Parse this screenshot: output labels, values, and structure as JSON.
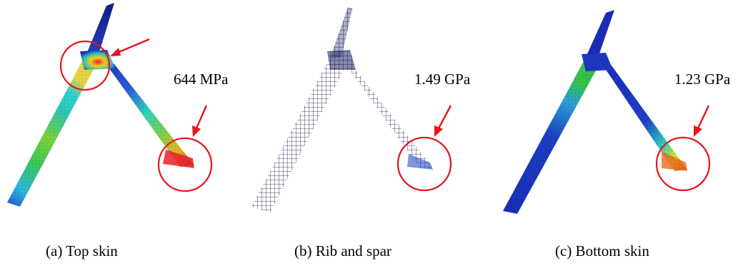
{
  "panels": [
    {
      "id": "a",
      "caption": "(a) Top skin",
      "stress_label": "644 MPa",
      "colormap": "stress-contour-rainbow"
    },
    {
      "id": "b",
      "caption": "(b) Rib and spar",
      "stress_label": "1.49 GPa",
      "colormap": "wireframe-mesh"
    },
    {
      "id": "c",
      "caption": "(c) Bottom skin",
      "stress_label": "1.23 GPa",
      "colormap": "stress-contour-rainbow"
    }
  ],
  "colors": {
    "low_stress": "#1a2db8",
    "mid_stress_cyan": "#2fd3e0",
    "mid_stress_green": "#34c449",
    "high_stress_yellow": "#e9e21e",
    "peak_stress": "#e8202a",
    "mesh_line": "#14143c",
    "callout": "#e8141e"
  }
}
